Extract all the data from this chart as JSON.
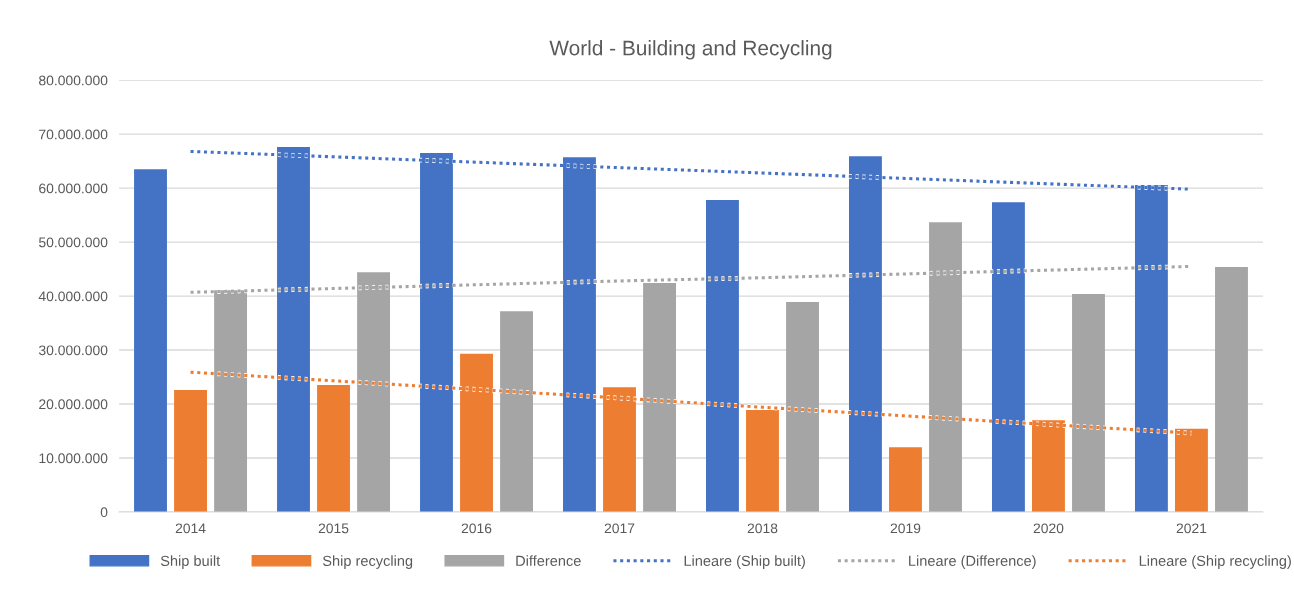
{
  "chart_data": {
    "type": "bar",
    "title": "World - Building and Recycling",
    "categories": [
      "2014",
      "2015",
      "2016",
      "2017",
      "2018",
      "2019",
      "2020",
      "2021"
    ],
    "series": [
      {
        "name": "Ship built",
        "color": "#4472c4",
        "values": [
          63500000,
          67600000,
          66500000,
          65700000,
          57800000,
          65900000,
          57400000,
          60600000
        ]
      },
      {
        "name": "Ship recycling",
        "color": "#ed7d31",
        "values": [
          22600000,
          23500000,
          29300000,
          23100000,
          18900000,
          12000000,
          17000000,
          15400000
        ]
      },
      {
        "name": "Difference",
        "color": "#a5a5a5",
        "values": [
          41100000,
          44400000,
          37200000,
          42400000,
          38900000,
          53700000,
          40400000,
          45400000
        ]
      },
      {
        "name": "Lineare (Ship built)",
        "type": "line",
        "color": "#4472c4",
        "line_style": "dotted",
        "values": [
          66800000,
          65800000,
          64800000,
          63800000,
          62800000,
          61800000,
          60800000,
          59800000
        ]
      },
      {
        "name": "Lineare (Difference)",
        "type": "line",
        "color": "#a5a5a5",
        "line_style": "dotted",
        "values": [
          40700000,
          41400000,
          42100000,
          42800000,
          43400000,
          44100000,
          44800000,
          45500000
        ]
      },
      {
        "name": "Lineare (Ship recycling)",
        "type": "line",
        "color": "#ed7d31",
        "line_style": "dotted",
        "values": [
          25900000,
          24300000,
          22700000,
          21100000,
          19400000,
          17800000,
          16200000,
          14600000
        ]
      }
    ],
    "ylim": [
      0,
      80000000
    ],
    "yticks": [
      0,
      {
        "value": 10000000,
        "label": "10.000.000"
      },
      {
        "value": 20000000,
        "label": "20.000.000"
      },
      {
        "value": 30000000,
        "label": "30.000.000"
      },
      {
        "value": 40000000,
        "label": "40.000.000"
      },
      {
        "value": 50000000,
        "label": "50.000.000"
      },
      {
        "value": 60000000,
        "label": "60.000.000"
      },
      {
        "value": 70000000,
        "label": "70.000.000"
      },
      {
        "value": 80000000,
        "label": "80.000.000"
      }
    ],
    "grid": "y",
    "legend": "bottom"
  }
}
